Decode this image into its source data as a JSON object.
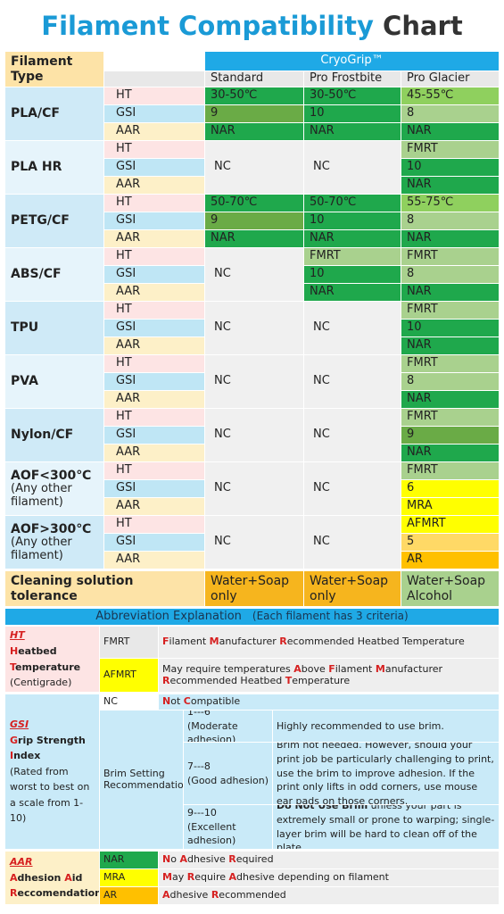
{
  "title": {
    "main": "Filament Compatibility",
    "accent": "Chart"
  },
  "table": {
    "corner": "Filament Type",
    "brand": "CryoGrip™",
    "columns": [
      "Standard",
      "Pro Frostbite",
      "Pro Glacier"
    ],
    "groups": [
      {
        "name": "PLA/CF",
        "criteria": [
          "HT",
          "GSI",
          "AAR"
        ],
        "cells": [
          [
            "30-50℃",
            "9",
            "NAR"
          ],
          [
            "30-50℃",
            "10",
            "NAR"
          ],
          [
            "45-55℃",
            "8",
            "NAR"
          ]
        ]
      },
      {
        "name": "PLA HR",
        "criteria": [
          "HT",
          "GSI",
          "AAR"
        ],
        "cells": [
          "NC",
          "NC",
          [
            "FMRT",
            "10",
            "NAR"
          ]
        ]
      },
      {
        "name": "PETG/CF",
        "criteria": [
          "HT",
          "GSI",
          "AAR"
        ],
        "cells": [
          [
            "50-70℃",
            "9",
            "NAR"
          ],
          [
            "50-70℃",
            "10",
            "NAR"
          ],
          [
            "55-75℃",
            "8",
            "NAR"
          ]
        ]
      },
      {
        "name": "ABS/CF",
        "criteria": [
          "HT",
          "GSI",
          "AAR"
        ],
        "cells": [
          "NC",
          [
            "FMRT",
            "10",
            "NAR"
          ],
          [
            "FMRT",
            "8",
            "NAR"
          ]
        ]
      },
      {
        "name": "TPU",
        "criteria": [
          "HT",
          "GSI",
          "AAR"
        ],
        "cells": [
          "NC",
          "NC",
          [
            "FMRT",
            "10",
            "NAR"
          ]
        ]
      },
      {
        "name": "PVA",
        "criteria": [
          "HT",
          "GSI",
          "AAR"
        ],
        "cells": [
          "NC",
          "NC",
          [
            "FMRT",
            "8",
            "NAR"
          ]
        ]
      },
      {
        "name": "Nylon/CF",
        "criteria": [
          "HT",
          "GSI",
          "AAR"
        ],
        "cells": [
          "NC",
          "NC",
          [
            "FMRT",
            "9",
            "NAR"
          ]
        ]
      },
      {
        "name": "AOF<300℃",
        "note": "(Any other filament)",
        "criteria": [
          "HT",
          "GSI",
          "AAR"
        ],
        "cells": [
          "NC",
          "NC",
          [
            "FMRT",
            "6",
            "MRA"
          ]
        ]
      },
      {
        "name": "AOF>300℃",
        "note": "(Any other filament)",
        "criteria": [
          "HT",
          "GSI",
          "AAR"
        ],
        "cells": [
          "NC",
          "NC",
          [
            "AFMRT",
            "5",
            "AR"
          ]
        ]
      }
    ],
    "cell_colors": {
      "30-50℃": "#1fa84c",
      "50-70℃": "#1fa84c",
      "45-55℃": "#8fd05e",
      "55-75℃": "#8fd05e",
      "9": "#6aab46",
      "10": "#1fa84c",
      "8": "#a9d18e",
      "NAR": "#1fa84c",
      "FMRT": "#a9d18e",
      "6": "#ffff00",
      "MRA": "#ffff00",
      "AFMRT": "#ffff00",
      "5": "#ffd966",
      "AR": "#ffc000"
    },
    "cleaning": {
      "label": "Cleaning solution tolerance",
      "values": [
        "Water+Soap only",
        "Water+Soap only",
        "Water+Soap Alcohol"
      ],
      "colors": [
        "#f6b51e",
        "#f6b51e",
        "#a9d18e"
      ]
    }
  },
  "legend": {
    "title": "Abbreviation Explanation",
    "note": "(Each filament has 3 criteria)",
    "ht": {
      "label": {
        "code": "HT",
        "lines": [
          {
            "text": [
              "H",
              "eatbed"
            ],
            "red": [
              0
            ]
          },
          {
            "text": [
              "T",
              "emperature"
            ],
            "red": [
              0
            ]
          }
        ],
        "note": "(Centigrade)"
      },
      "items": [
        {
          "code": "FMRT",
          "color": "#e8e8e8",
          "desc": {
            "text": [
              "F",
              "ilament ",
              "M",
              "anufacturer ",
              "R",
              "ecommended Heatbed Temperature"
            ],
            "red": [
              0,
              2,
              4
            ]
          }
        },
        {
          "code": "AFMRT",
          "color": "#ffff00",
          "desc": {
            "text": [
              "May require temperatures ",
              "A",
              "bove ",
              "F",
              "ilament ",
              "M",
              "anufacturer ",
              "R",
              "ecommended Heatbed ",
              "T",
              "emperature"
            ],
            "red": [
              1,
              3,
              5,
              7,
              9
            ]
          }
        }
      ]
    },
    "nc": {
      "code": "NC",
      "desc": {
        "text": [
          "N",
          "ot ",
          "C",
          "ompatible"
        ],
        "red": [
          0,
          2
        ]
      }
    },
    "gsi": {
      "label": {
        "code": "GSI",
        "lines": [
          {
            "text": [
              "G",
              "rip Strength"
            ],
            "red": [
              0
            ]
          },
          {
            "text": [
              "I",
              "ndex"
            ],
            "red": [
              0
            ]
          }
        ],
        "note": "(Rated from worst to best on a scale from 1-10)"
      },
      "brim": {
        "label": "Brim Setting Recommendation",
        "items": [
          {
            "range": "1---6",
            "level": "(Moderate adhesion)",
            "desc": {
              "text": [
                "Highly recommended to use brim."
              ]
            }
          },
          {
            "range": "7---8",
            "level": "(Good adhesion)",
            "desc": {
              "text": [
                "Brim not needed. However, should your print job be particularly challenging to print, use the brim to improve adhesion. If the print only lifts in odd corners, use mouse ear pads on those corners."
              ]
            }
          },
          {
            "range": "9---10",
            "level": "(Excellent adhesion)",
            "desc": {
              "text": [
                "Do Not Use Brim",
                " unless your part is extremely small or prone to warping; single-layer brim will be hard to clean off of the plate."
              ],
              "bold": [
                0
              ]
            }
          }
        ]
      }
    },
    "aar": {
      "label": {
        "code": "AAR",
        "lines": [
          {
            "text": [
              "A",
              "dhesion ",
              "A",
              "id"
            ],
            "red": [
              0,
              2
            ]
          },
          {
            "text": [
              "R",
              "eccomendation"
            ],
            "red": [
              0
            ]
          }
        ]
      },
      "items": [
        {
          "code": "NAR",
          "color": "#1fa84c",
          "desc": {
            "text": [
              "N",
              "o ",
              "A",
              "dhesive ",
              "R",
              "equired"
            ],
            "red": [
              0,
              2,
              4
            ]
          }
        },
        {
          "code": "MRA",
          "color": "#ffff00",
          "desc": {
            "text": [
              "M",
              "ay ",
              "R",
              "equire ",
              "A",
              "dhesive depending on filament"
            ],
            "red": [
              0,
              2,
              4
            ]
          }
        },
        {
          "code": "AR",
          "color": "#ffc000",
          "desc": {
            "text": [
              "A",
              "dhesive ",
              "R",
              "ecommended"
            ],
            "red": [
              0,
              2
            ]
          }
        }
      ]
    }
  }
}
